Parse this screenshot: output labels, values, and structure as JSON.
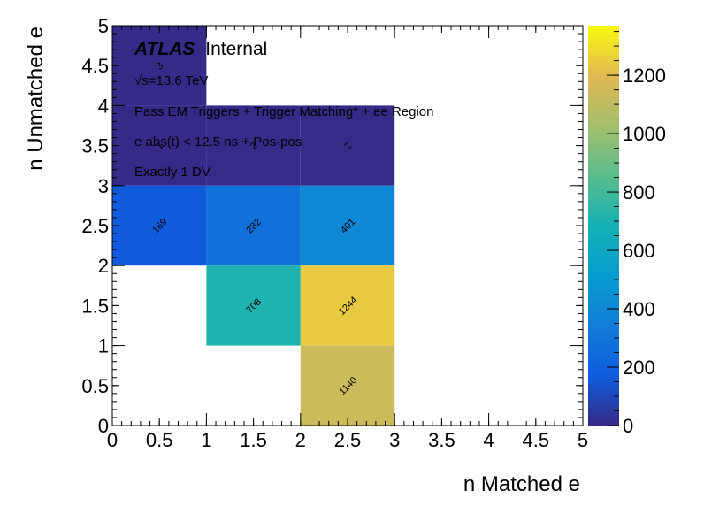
{
  "chart_data": {
    "type": "heatmap",
    "title": "",
    "xlabel": "n Matched e",
    "ylabel": "n Unmatched e",
    "xlim": [
      0,
      5
    ],
    "ylim": [
      0,
      5
    ],
    "x_ticks": [
      "0",
      "0.5",
      "1",
      "1.5",
      "2",
      "2.5",
      "3",
      "3.5",
      "4",
      "4.5",
      "5"
    ],
    "y_ticks": [
      "0",
      "0.5",
      "1",
      "1.5",
      "2",
      "2.5",
      "3",
      "3.5",
      "4",
      "4.5",
      "5"
    ],
    "zlim": [
      0,
      1370
    ],
    "z_ticks": [
      "0",
      "200",
      "400",
      "600",
      "800",
      "1000",
      "1200"
    ],
    "colormap": "kBird",
    "grid": false,
    "cells": [
      {
        "x": [
          0,
          1
        ],
        "y": [
          4,
          5
        ],
        "value": 3,
        "label": "3"
      },
      {
        "x": [
          0,
          1
        ],
        "y": [
          3,
          4
        ],
        "value": 1,
        "label": "1"
      },
      {
        "x": [
          1,
          2
        ],
        "y": [
          3,
          4
        ],
        "value": 2,
        "label": "2"
      },
      {
        "x": [
          2,
          3
        ],
        "y": [
          3,
          4
        ],
        "value": 2,
        "label": "2"
      },
      {
        "x": [
          0,
          1
        ],
        "y": [
          2,
          3
        ],
        "value": 169,
        "label": "169"
      },
      {
        "x": [
          1,
          2
        ],
        "y": [
          2,
          3
        ],
        "value": 282,
        "label": "282"
      },
      {
        "x": [
          2,
          3
        ],
        "y": [
          2,
          3
        ],
        "value": 401,
        "label": "401"
      },
      {
        "x": [
          1,
          2
        ],
        "y": [
          1,
          2
        ],
        "value": 708,
        "label": "708"
      },
      {
        "x": [
          2,
          3
        ],
        "y": [
          1,
          2
        ],
        "value": 1244,
        "label": "1244"
      },
      {
        "x": [
          2,
          3
        ],
        "y": [
          0,
          1
        ],
        "value": 1140,
        "label": "1140"
      }
    ],
    "annotations": {
      "atlas": "ATLAS",
      "status": "Internal",
      "energy": "√s=13.6 TeV",
      "line1": "Pass EM Triggers + Trigger Matching* + ee Region",
      "line2": "e abs(t) < 12.5 ns + Pos-pos",
      "line3": "Exactly 1 DV"
    }
  }
}
